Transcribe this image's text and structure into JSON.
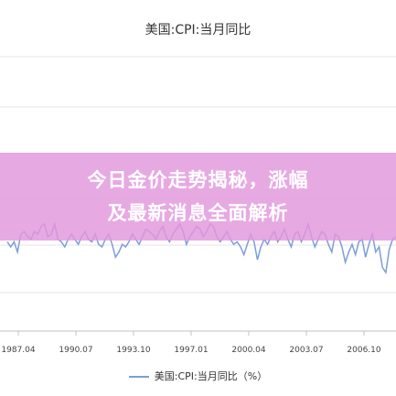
{
  "chart_data": {
    "type": "line",
    "title": "美国:CPI:当月同比",
    "xlabel": "",
    "ylabel": "",
    "x_ticks": [
      "1987.04",
      "1990.07",
      "1993.10",
      "1997.01",
      "2000.04",
      "2003.07",
      "2006.10"
    ],
    "legend": [
      "美国:CPI:当月同比（%）"
    ],
    "legend_position": "bottom",
    "grid": true,
    "series": [
      {
        "name": "美国:CPI:当月同比（%）",
        "color": "#7b9ed8",
        "values": [
          0.2,
          0.0,
          0.2,
          -0.2,
          0.5,
          0.6,
          0.4,
          0.3,
          0.6,
          0.5,
          0.8,
          0.9,
          0.4,
          0.5,
          0.9,
          0.3,
          0.2,
          0.0,
          0.3,
          0.5,
          0.3,
          0.1,
          0.4,
          0.6,
          0.3,
          0.2,
          0.5,
          0.1,
          0.0,
          0.3,
          0.5,
          0.1,
          -0.4,
          -0.2,
          0.1,
          0.0,
          0.2,
          0.5,
          0.3,
          0.1,
          0.4,
          0.7,
          0.6,
          0.5,
          0.3,
          0.6,
          0.8,
          0.4,
          0.2,
          0.5,
          0.7,
          0.9,
          0.6,
          0.1,
          0.4,
          0.6,
          0.8,
          0.7,
          0.4,
          0.6,
          0.9,
          0.8,
          0.4,
          0.2,
          0.4,
          0.6,
          0.3,
          0.1,
          0.2,
          0.0,
          -0.3,
          0.1,
          0.5,
          0.2,
          -0.5,
          0.0,
          0.3,
          0.1,
          0.4,
          0.6,
          0.2,
          0.4,
          0.7,
          0.3,
          0.0,
          0.5,
          0.6,
          0.2,
          0.5,
          0.9,
          0.4,
          0.0,
          0.3,
          0.6,
          0.5,
          0.1,
          -0.2,
          0.5,
          0.4,
          0.0,
          -0.6,
          -0.2,
          0.1,
          -0.3,
          0.2,
          0.3,
          -0.4,
          0.1,
          0.5,
          -0.2,
          0.0,
          -0.8,
          -1.0,
          -0.1,
          0.3,
          0.4
        ]
      }
    ]
  },
  "banner": {
    "line1": "今日金价走势揭秘，涨幅",
    "line2": "及最新消息全面解析"
  },
  "colors": {
    "line": "#7b9ed8",
    "banner": "#e296dc",
    "grid": "#e6e6e6",
    "axis": "#c0c0c0"
  }
}
